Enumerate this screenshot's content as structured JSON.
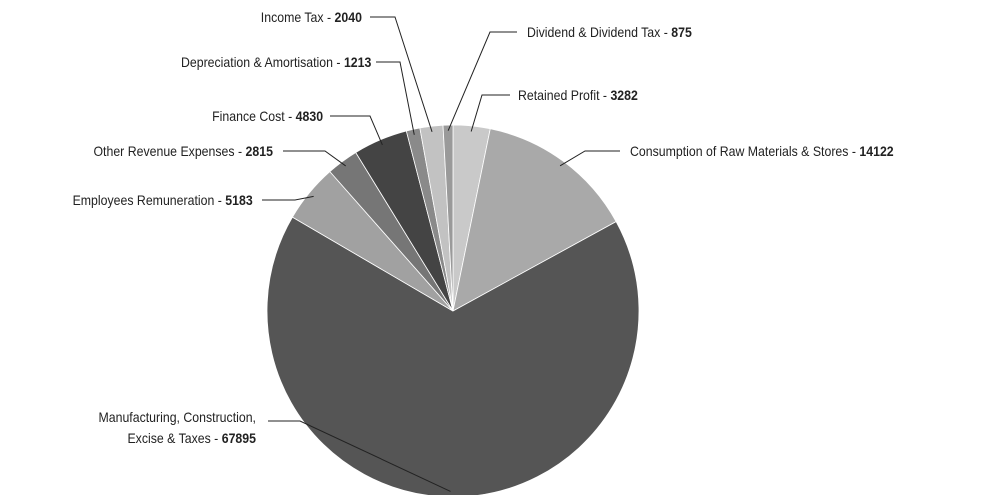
{
  "chart_data": {
    "type": "pie",
    "categories": [
      "Retained Profit",
      "Consumption of Raw Materials & Stores",
      "Manufacturing, Construction,\nExcise & Taxes",
      "Employees Remuneration",
      "Other Revenue Expenses",
      "Finance Cost",
      "Depreciation & Amortisation",
      "Income Tax",
      "Dividend & Dividend Tax"
    ],
    "values": [
      3282,
      14122,
      67895,
      5183,
      2815,
      4830,
      1213,
      2040,
      875
    ],
    "colors": [
      "#c9c9c9",
      "#a9a9a9",
      "#555555",
      "#a1a1a1",
      "#767676",
      "#444444",
      "#8a8a8a",
      "#c2c2c2",
      "#9a9a9a"
    ],
    "separator": " - "
  }
}
